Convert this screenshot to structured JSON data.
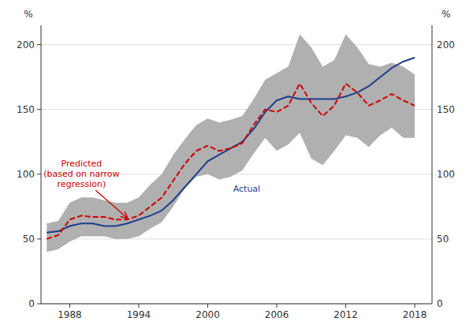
{
  "chart_data": {
    "type": "line",
    "x": [
      1986,
      1987,
      1988,
      1989,
      1990,
      1991,
      1992,
      1993,
      1994,
      1995,
      1996,
      1997,
      1998,
      1999,
      2000,
      2001,
      2002,
      2003,
      2004,
      2005,
      2006,
      2007,
      2008,
      2009,
      2010,
      2011,
      2012,
      2013,
      2014,
      2015,
      2016,
      2017,
      2018
    ],
    "series": [
      {
        "type": "band",
        "color": "#b0b0b0",
        "upper": [
          62,
          64,
          78,
          82,
          82,
          80,
          78,
          78,
          82,
          92,
          100,
          115,
          127,
          138,
          143,
          140,
          142,
          145,
          158,
          173,
          178,
          183,
          208,
          198,
          183,
          188,
          208,
          198,
          185,
          183,
          186,
          183,
          177
        ],
        "lower": [
          40,
          42,
          48,
          52,
          52,
          52,
          50,
          50,
          52,
          58,
          63,
          75,
          89,
          98,
          100,
          96,
          98,
          103,
          116,
          128,
          118,
          123,
          132,
          112,
          107,
          118,
          130,
          128,
          121,
          130,
          136,
          128,
          128
        ]
      },
      {
        "type": "line",
        "color": "#1f3d8c",
        "line_style": "solid",
        "values": [
          55,
          56,
          60,
          62,
          62,
          60,
          60,
          62,
          65,
          68,
          72,
          80,
          90,
          100,
          110,
          115,
          120,
          125,
          135,
          148,
          157,
          160,
          158,
          158,
          158,
          158,
          160,
          163,
          168,
          175,
          182,
          187,
          190
        ]
      },
      {
        "type": "line",
        "color": "#cc0000",
        "line_style": "dashed",
        "values": [
          50,
          53,
          65,
          68,
          67,
          67,
          65,
          65,
          68,
          75,
          82,
          95,
          108,
          118,
          122,
          118,
          120,
          124,
          138,
          150,
          148,
          153,
          170,
          155,
          145,
          153,
          170,
          163,
          153,
          157,
          162,
          157,
          153
        ]
      }
    ],
    "xlim": [
      1985.5,
      2019.5
    ],
    "xticks": [
      1988,
      1994,
      2000,
      2006,
      2012,
      2018
    ],
    "ylim": [
      0,
      215
    ],
    "yticks": [
      0,
      50,
      100,
      150,
      200
    ],
    "y2lim": [
      0,
      215
    ],
    "y2ticks": [
      0,
      50,
      100,
      150,
      200
    ],
    "ylabel": "%",
    "y2label": "%",
    "grid": true,
    "annotations": [
      {
        "text": "Predicted\n(based on narrow\nregression)",
        "color": "#cc0000"
      },
      {
        "text": "Actual",
        "color": "#1f3d8c"
      }
    ]
  }
}
